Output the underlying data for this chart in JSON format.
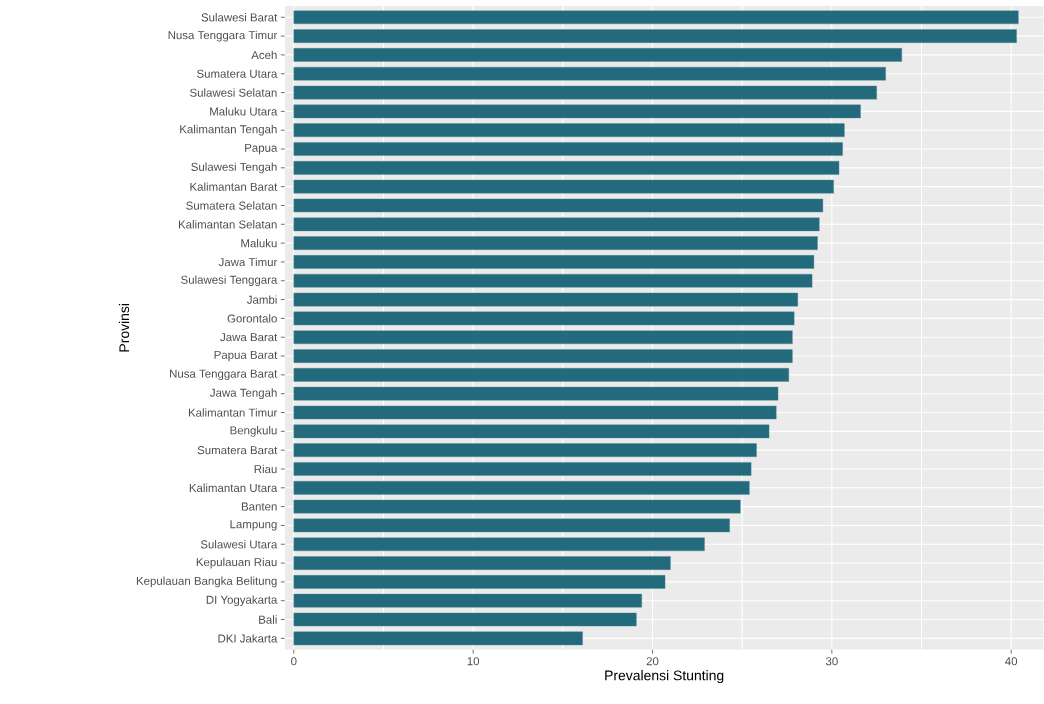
{
  "chart_data": {
    "type": "bar",
    "orientation": "horizontal",
    "xlabel": "Prevalensi Stunting",
    "ylabel": "Provinsi",
    "categories": [
      "Sulawesi Barat",
      "Nusa Tenggara Timur",
      "Aceh",
      "Sumatera Utara",
      "Sulawesi Selatan",
      "Maluku Utara",
      "Kalimantan Tengah",
      "Papua",
      "Sulawesi Tengah",
      "Kalimantan Barat",
      "Sumatera Selatan",
      "Kalimantan Selatan",
      "Maluku",
      "Jawa Timur",
      "Sulawesi Tenggara",
      "Jambi",
      "Gorontalo",
      "Jawa Barat",
      "Papua Barat",
      "Nusa Tenggara Barat",
      "Jawa Tengah",
      "Kalimantan Timur",
      "Bengkulu",
      "Sumatera Barat",
      "Riau",
      "Kalimantan Utara",
      "Banten",
      "Lampung",
      "Sulawesi Utara",
      "Kepulauan Riau",
      "Kepulauan Bangka Belitung",
      "DI Yogyakarta",
      "Bali",
      "DKI Jakarta"
    ],
    "values": [
      40.4,
      40.3,
      33.9,
      33.0,
      32.5,
      31.6,
      30.7,
      30.6,
      30.4,
      30.1,
      29.5,
      29.3,
      29.2,
      29.0,
      28.9,
      28.1,
      27.9,
      27.8,
      27.8,
      27.6,
      27.0,
      26.9,
      26.5,
      25.8,
      25.5,
      25.4,
      24.9,
      24.3,
      22.9,
      21.0,
      20.7,
      19.4,
      19.1,
      16.1
    ],
    "color": "#236a7c",
    "xlim": [
      -0.5,
      41.8
    ],
    "xticks": [
      0,
      10,
      20,
      30,
      40
    ],
    "grid": true
  }
}
